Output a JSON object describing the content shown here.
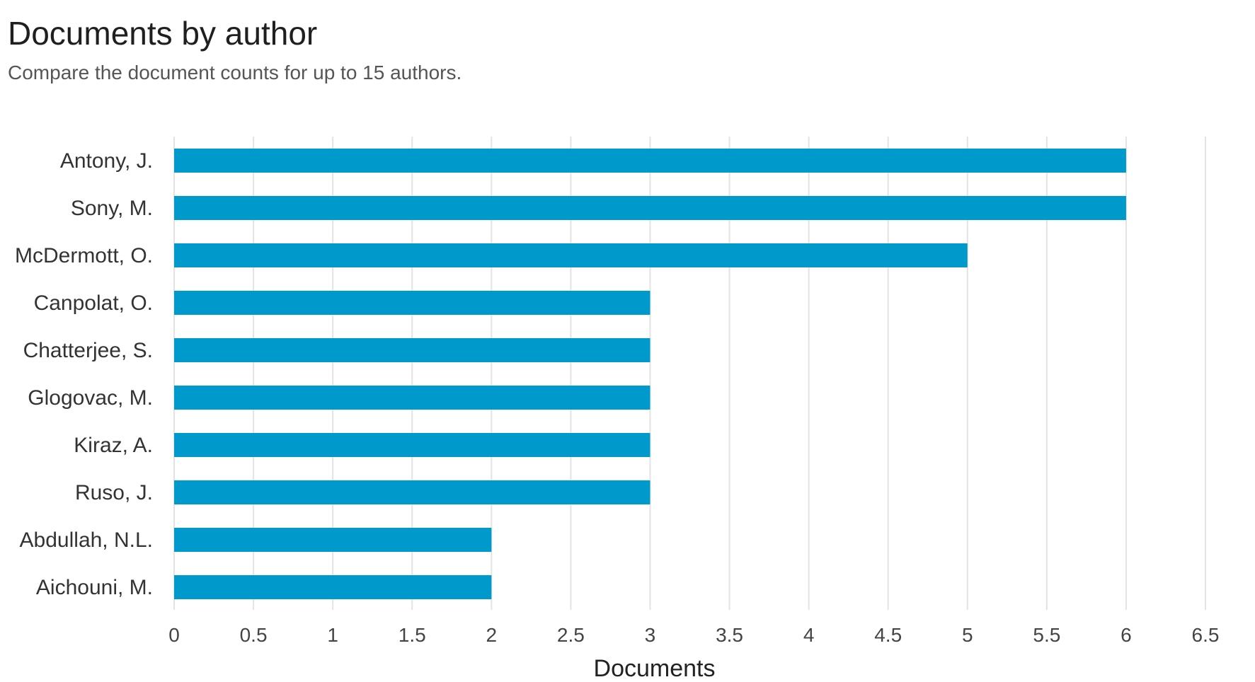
{
  "header": {
    "title": "Documents by author",
    "subtitle": "Compare the document counts for up to 15 authors."
  },
  "chart_data": {
    "type": "bar",
    "orientation": "horizontal",
    "title": "Documents by author",
    "subtitle": "Compare the document counts for up to 15 authors.",
    "xlabel": "Documents",
    "ylabel": "",
    "categories": [
      "Antony, J.",
      "Sony, M.",
      "McDermott, O.",
      "Canpolat, O.",
      "Chatterjee, S.",
      "Glogovac, M.",
      "Kiraz, A.",
      "Ruso, J.",
      "Abdullah, N.L.",
      "Aichouni, M."
    ],
    "values": [
      6,
      6,
      5,
      3,
      3,
      3,
      3,
      3,
      2,
      2
    ],
    "xlim": [
      0,
      6.5
    ],
    "x_ticks": [
      0,
      0.5,
      1,
      1.5,
      2,
      2.5,
      3,
      3.5,
      4,
      4.5,
      5,
      5.5,
      6,
      6.5
    ],
    "grid": "vertical",
    "legend": "none",
    "colors": {
      "bar": "#0099cc",
      "grid": "#e3e3e3"
    }
  }
}
